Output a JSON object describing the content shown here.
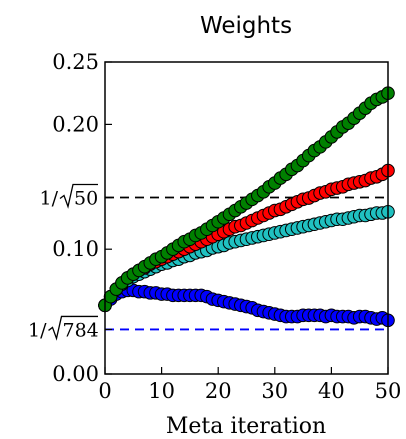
{
  "chart_data": {
    "type": "scatter",
    "title": "Weights",
    "xlabel": "Meta iteration",
    "ylabel": "",
    "xlim": [
      0,
      50
    ],
    "ylim": [
      0.0,
      0.25
    ],
    "xticks": [
      0,
      10,
      20,
      30,
      40,
      50
    ],
    "xtick_labels": [
      "0",
      "10",
      "20",
      "30",
      "40",
      "50"
    ],
    "yticks": [
      0.0,
      0.1,
      0.2,
      0.25
    ],
    "ytick_labels": [
      "0.00",
      "0.10",
      "0.20",
      "0.25"
    ],
    "grid": false,
    "reference_lines": [
      {
        "value": 0.1414,
        "label_prefix": "1/",
        "label_radicand": "50",
        "color": "#000000",
        "style": "dashed"
      },
      {
        "value": 0.0357,
        "label_prefix": "1/",
        "label_radicand": "784",
        "color": "#0000ff",
        "style": "dashed"
      }
    ],
    "series": [
      {
        "color": "#008000",
        "x": [
          0,
          1,
          2,
          3,
          4,
          5,
          6,
          7,
          8,
          9,
          10,
          11,
          12,
          13,
          14,
          15,
          16,
          17,
          18,
          19,
          20,
          21,
          22,
          23,
          24,
          25,
          26,
          27,
          28,
          29,
          30,
          31,
          32,
          33,
          34,
          35,
          36,
          37,
          38,
          39,
          40,
          41,
          42,
          43,
          44,
          45,
          46,
          47,
          48,
          49,
          50
        ],
        "values": [
          0.055,
          0.062,
          0.068,
          0.073,
          0.077,
          0.08,
          0.083,
          0.086,
          0.089,
          0.092,
          0.094,
          0.097,
          0.1,
          0.103,
          0.106,
          0.108,
          0.111,
          0.113,
          0.116,
          0.119,
          0.122,
          0.125,
          0.128,
          0.131,
          0.134,
          0.137,
          0.14,
          0.143,
          0.146,
          0.15,
          0.153,
          0.157,
          0.16,
          0.164,
          0.167,
          0.171,
          0.175,
          0.179,
          0.182,
          0.186,
          0.19,
          0.194,
          0.198,
          0.201,
          0.205,
          0.209,
          0.213,
          0.217,
          0.22,
          0.222,
          0.225
        ]
      },
      {
        "color": "#ff0000",
        "x": [
          0,
          1,
          2,
          3,
          4,
          5,
          6,
          7,
          8,
          9,
          10,
          11,
          12,
          13,
          14,
          15,
          16,
          17,
          18,
          19,
          20,
          21,
          22,
          23,
          24,
          25,
          26,
          27,
          28,
          29,
          30,
          31,
          32,
          33,
          34,
          35,
          36,
          37,
          38,
          39,
          40,
          41,
          42,
          43,
          44,
          45,
          46,
          47,
          48,
          49,
          50
        ],
        "values": [
          0.055,
          0.062,
          0.068,
          0.073,
          0.077,
          0.08,
          0.083,
          0.085,
          0.088,
          0.09,
          0.092,
          0.094,
          0.096,
          0.098,
          0.1,
          0.102,
          0.104,
          0.106,
          0.108,
          0.11,
          0.112,
          0.114,
          0.116,
          0.118,
          0.119,
          0.121,
          0.123,
          0.125,
          0.127,
          0.129,
          0.131,
          0.132,
          0.134,
          0.136,
          0.138,
          0.14,
          0.141,
          0.143,
          0.145,
          0.146,
          0.148,
          0.149,
          0.15,
          0.152,
          0.153,
          0.154,
          0.155,
          0.157,
          0.158,
          0.16,
          0.163
        ]
      },
      {
        "color": "#20c0c0",
        "x": [
          0,
          1,
          2,
          3,
          4,
          5,
          6,
          7,
          8,
          9,
          10,
          11,
          12,
          13,
          14,
          15,
          16,
          17,
          18,
          19,
          20,
          21,
          22,
          23,
          24,
          25,
          26,
          27,
          28,
          29,
          30,
          31,
          32,
          33,
          34,
          35,
          36,
          37,
          38,
          39,
          40,
          41,
          42,
          43,
          44,
          45,
          46,
          47,
          48,
          49,
          50
        ],
        "values": [
          0.055,
          0.062,
          0.068,
          0.072,
          0.075,
          0.078,
          0.08,
          0.082,
          0.084,
          0.086,
          0.088,
          0.089,
          0.091,
          0.092,
          0.094,
          0.095,
          0.097,
          0.098,
          0.099,
          0.101,
          0.102,
          0.103,
          0.105,
          0.106,
          0.107,
          0.108,
          0.109,
          0.11,
          0.111,
          0.112,
          0.113,
          0.114,
          0.115,
          0.116,
          0.117,
          0.118,
          0.119,
          0.12,
          0.121,
          0.122,
          0.123,
          0.124,
          0.124,
          0.125,
          0.126,
          0.127,
          0.127,
          0.128,
          0.129,
          0.129,
          0.13
        ]
      },
      {
        "color": "#0000ff",
        "x": [
          0,
          1,
          2,
          3,
          4,
          5,
          6,
          7,
          8,
          9,
          10,
          11,
          12,
          13,
          14,
          15,
          16,
          17,
          18,
          19,
          20,
          21,
          22,
          23,
          24,
          25,
          26,
          27,
          28,
          29,
          30,
          31,
          32,
          33,
          34,
          35,
          36,
          37,
          38,
          39,
          40,
          41,
          42,
          43,
          44,
          45,
          46,
          47,
          48,
          49,
          50
        ],
        "values": [
          0.055,
          0.06,
          0.064,
          0.066,
          0.067,
          0.067,
          0.066,
          0.066,
          0.065,
          0.065,
          0.064,
          0.064,
          0.063,
          0.063,
          0.063,
          0.063,
          0.063,
          0.063,
          0.062,
          0.06,
          0.059,
          0.058,
          0.057,
          0.056,
          0.055,
          0.054,
          0.053,
          0.051,
          0.05,
          0.049,
          0.048,
          0.047,
          0.046,
          0.046,
          0.046,
          0.047,
          0.047,
          0.047,
          0.047,
          0.046,
          0.047,
          0.046,
          0.046,
          0.046,
          0.045,
          0.046,
          0.046,
          0.045,
          0.044,
          0.045,
          0.043
        ]
      }
    ]
  }
}
